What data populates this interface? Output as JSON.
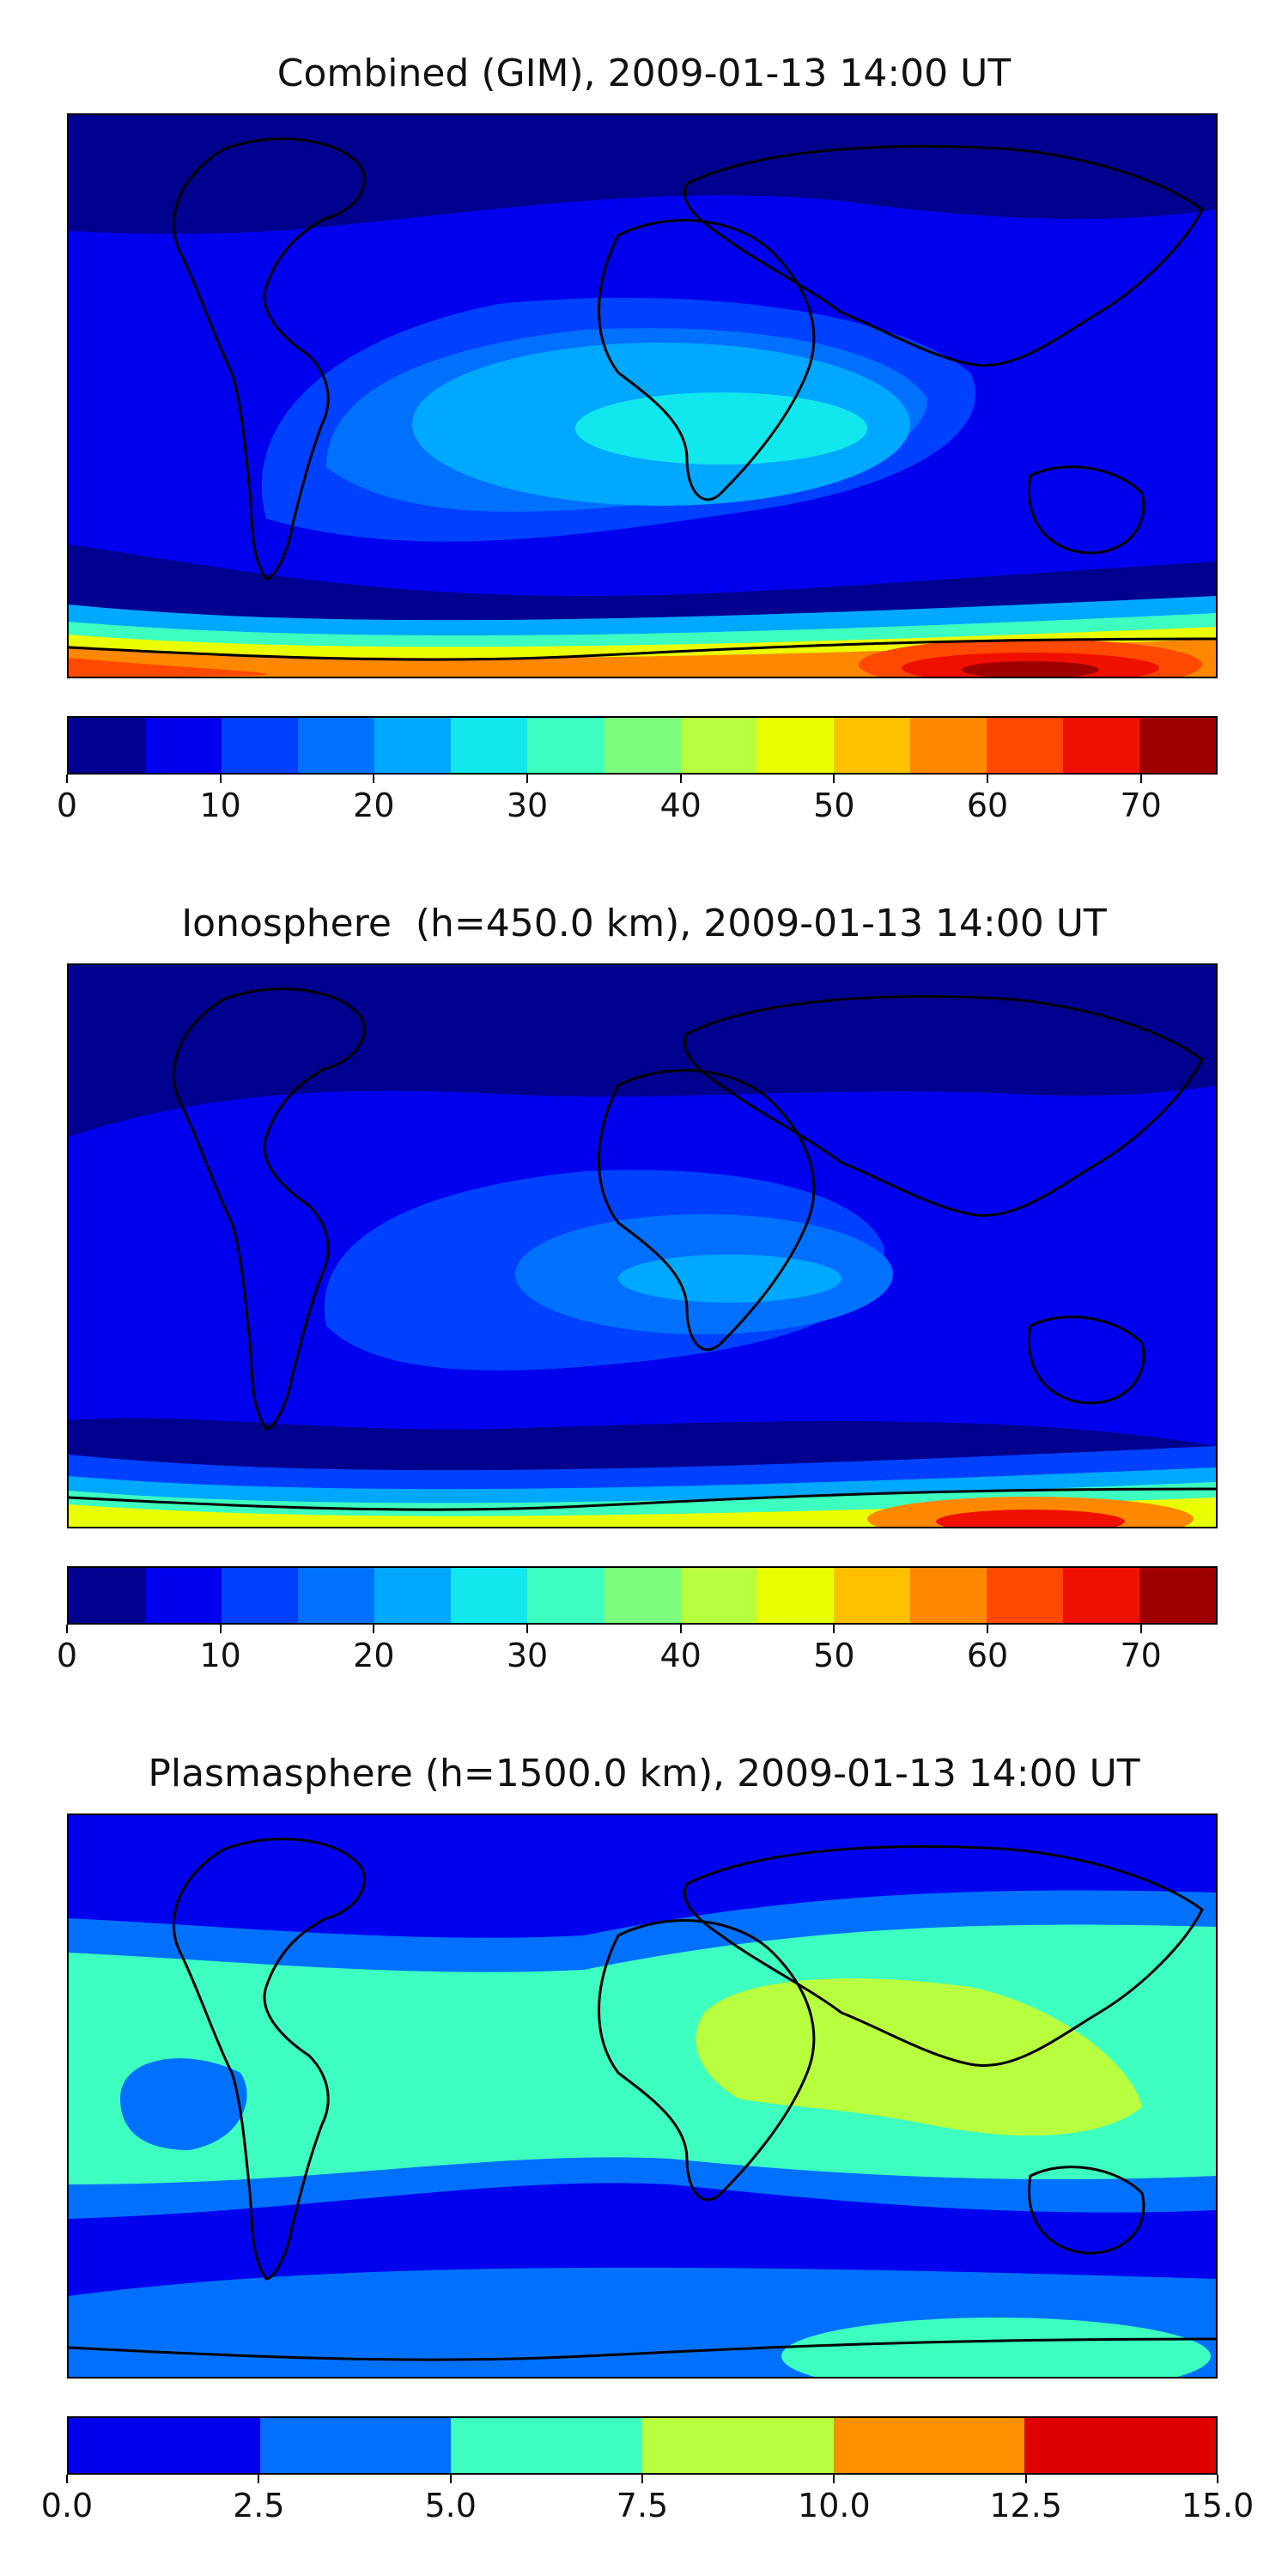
{
  "chart_data": [
    {
      "type": "heatmap",
      "title": "Combined (GIM), 2009-01-13 14:00 UT",
      "colorbar_ticks": [
        "0",
        "10",
        "20",
        "30",
        "40",
        "50",
        "60",
        "70"
      ],
      "colorbar_range": [
        0,
        75
      ],
      "levels": [
        0,
        5,
        10,
        15,
        20,
        25,
        30,
        35,
        40,
        45,
        50,
        55,
        60,
        65,
        70,
        75
      ],
      "colors": [
        "#00008f",
        "#0000ef",
        "#0040ff",
        "#0070ff",
        "#00a8ff",
        "#10e8ee",
        "#3cffc0",
        "#7cff7c",
        "#b8ff40",
        "#eaff00",
        "#ffc000",
        "#ff8800",
        "#ff4800",
        "#ef1000",
        "#9f0000"
      ],
      "features": [
        "coastlines"
      ]
    },
    {
      "type": "heatmap",
      "title": "Ionosphere  (h=450.0 km), 2009-01-13 14:00 UT",
      "colorbar_ticks": [
        "0",
        "10",
        "20",
        "30",
        "40",
        "50",
        "60",
        "70"
      ],
      "colorbar_range": [
        0,
        75
      ],
      "levels": [
        0,
        5,
        10,
        15,
        20,
        25,
        30,
        35,
        40,
        45,
        50,
        55,
        60,
        65,
        70,
        75
      ],
      "colors": [
        "#00008f",
        "#0000ef",
        "#0040ff",
        "#0070ff",
        "#00a8ff",
        "#10e8ee",
        "#3cffc0",
        "#7cff7c",
        "#b8ff40",
        "#eaff00",
        "#ffc000",
        "#ff8800",
        "#ff4800",
        "#ef1000",
        "#9f0000"
      ],
      "features": [
        "coastlines"
      ]
    },
    {
      "type": "heatmap",
      "title": "Plasmasphere (h=1500.0 km), 2009-01-13 14:00 UT",
      "colorbar_ticks": [
        "0.0",
        "2.5",
        "5.0",
        "7.5",
        "10.0",
        "12.5",
        "15.0"
      ],
      "colorbar_range": [
        0,
        15
      ],
      "levels": [
        0,
        2.5,
        5,
        7.5,
        10,
        12.5,
        15
      ],
      "colors": [
        "#0000ef",
        "#0070ff",
        "#3cffc0",
        "#b8ff40",
        "#ff9000",
        "#df0000"
      ],
      "features": [
        "coastlines"
      ]
    }
  ]
}
